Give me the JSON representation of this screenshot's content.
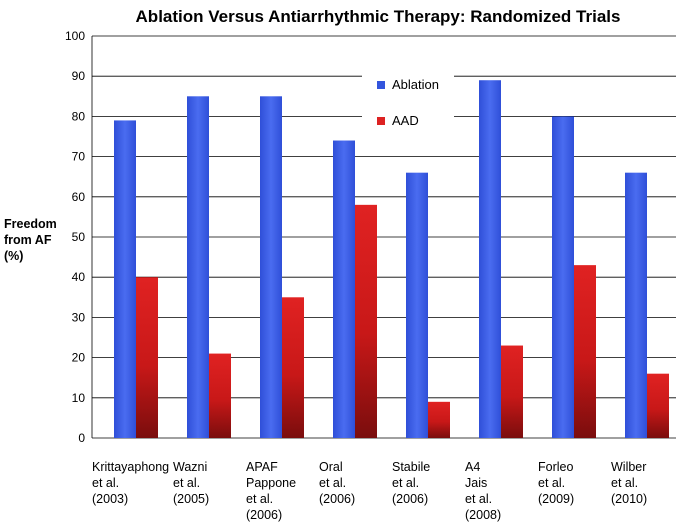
{
  "chart_data": {
    "type": "bar",
    "title": "Ablation Versus Antiarrhythmic Therapy: Randomized Trials",
    "ylabel_lines": [
      "Freedom",
      "from AF",
      "(%)"
    ],
    "xlabel": "",
    "ylim": [
      0,
      100
    ],
    "yticks": [
      0,
      10,
      20,
      30,
      40,
      50,
      60,
      70,
      80,
      90,
      100
    ],
    "grid": true,
    "legend_position": "top-center",
    "categories": [
      [
        "Krittayaphong",
        "et al.",
        "(2003)"
      ],
      [
        "Wazni",
        "et al.",
        "(2005)"
      ],
      [
        "APAF",
        "Pappone",
        "et al.",
        "(2006)"
      ],
      [
        "Oral",
        "et al.",
        "(2006)"
      ],
      [
        "Stabile",
        "et al.",
        "(2006)"
      ],
      [
        "A4",
        "Jais",
        "et al.",
        "(2008)"
      ],
      [
        "Forleo",
        "et al.",
        "(2009)"
      ],
      [
        "Wilber",
        "et al.",
        "(2010)"
      ]
    ],
    "series": [
      {
        "name": "Ablation",
        "color": "#3355dd",
        "values": [
          79,
          85,
          85,
          74,
          66,
          89,
          80,
          66
        ]
      },
      {
        "name": "AAD",
        "color": "#dd2222",
        "values": [
          40,
          21,
          35,
          58,
          9,
          23,
          43,
          16
        ]
      }
    ]
  }
}
